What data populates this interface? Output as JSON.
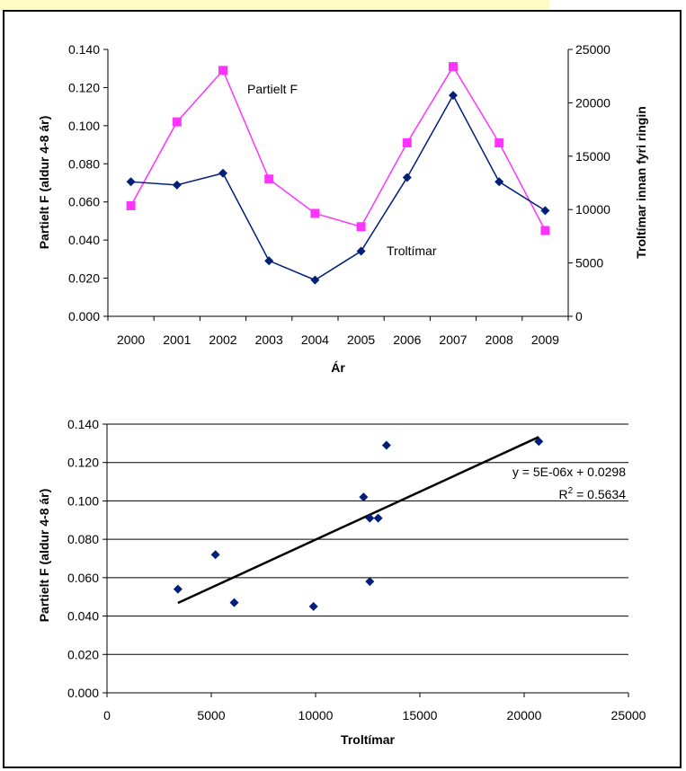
{
  "chart_data": [
    {
      "type": "line",
      "title": "",
      "xlabel": "Ár",
      "ylabel": "Partielt F (aldur 4-8 ár)",
      "y2label": "Troltímar innan fyri ringin",
      "categories": [
        "2000",
        "2001",
        "2002",
        "2003",
        "2004",
        "2005",
        "2006",
        "2007",
        "2008",
        "2009"
      ],
      "ylim": [
        0,
        0.14
      ],
      "y_ticks": [
        "0.000",
        "0.020",
        "0.040",
        "0.060",
        "0.080",
        "0.100",
        "0.120",
        "0.140"
      ],
      "y2lim": [
        0,
        25000
      ],
      "y2_ticks": [
        "0",
        "5000",
        "10000",
        "15000",
        "20000",
        "25000"
      ],
      "grid": false,
      "series": [
        {
          "name": "Partielt F",
          "axis": "left",
          "color": "#ff33ff",
          "marker": "square",
          "values": [
            0.058,
            0.102,
            0.129,
            0.072,
            0.054,
            0.047,
            0.091,
            0.131,
            0.091,
            0.045
          ]
        },
        {
          "name": "Troltímar",
          "axis": "right",
          "color": "#001e7a",
          "marker": "diamond",
          "values": [
            12600,
            12300,
            13400,
            5200,
            3400,
            6100,
            13000,
            20700,
            12600,
            9900
          ]
        }
      ]
    },
    {
      "type": "scatter",
      "title": "",
      "xlabel": "Troltímar",
      "ylabel": "Partielt F (aldur 4-8 ár)",
      "xlim": [
        0,
        25000
      ],
      "x_ticks": [
        "0",
        "5000",
        "10000",
        "15000",
        "20000",
        "25000"
      ],
      "ylim": [
        0,
        0.14
      ],
      "y_ticks": [
        "0.000",
        "0.020",
        "0.040",
        "0.060",
        "0.080",
        "0.100",
        "0.120",
        "0.140"
      ],
      "grid": true,
      "marker_color": "#001e7a",
      "points": [
        {
          "x": 12600,
          "y": 0.058
        },
        {
          "x": 12300,
          "y": 0.102
        },
        {
          "x": 13400,
          "y": 0.129
        },
        {
          "x": 5200,
          "y": 0.072
        },
        {
          "x": 3400,
          "y": 0.054
        },
        {
          "x": 6100,
          "y": 0.047
        },
        {
          "x": 13000,
          "y": 0.091
        },
        {
          "x": 20700,
          "y": 0.131
        },
        {
          "x": 12600,
          "y": 0.091
        },
        {
          "x": 9900,
          "y": 0.045
        }
      ],
      "trendline": {
        "slope": 5e-06,
        "intercept": 0.0298,
        "x_range": [
          3400,
          20700
        ]
      },
      "equation_label": "y = 5E-06x + 0.0298",
      "r2_base": "R",
      "r2_sup": "2",
      "r2_value": " = 0.5634"
    }
  ]
}
